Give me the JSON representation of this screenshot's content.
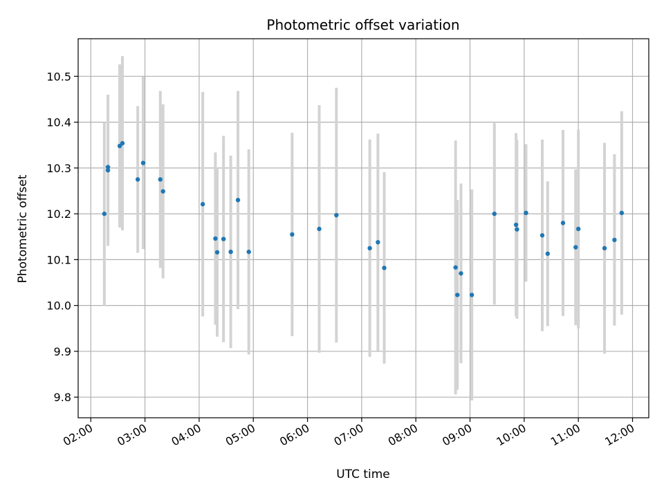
{
  "chart_data": {
    "type": "scatter",
    "title": "Photometric offset variation",
    "xlabel": "UTC time",
    "ylabel": "Photometric offset",
    "x_tick_labels": [
      "02:00",
      "03:00",
      "04:00",
      "05:00",
      "06:00",
      "07:00",
      "08:00",
      "09:00",
      "10:00",
      "11:00",
      "12:00"
    ],
    "y_tick_labels": [
      "9.8",
      "9.9",
      "10.0",
      "10.1",
      "10.2",
      "10.3",
      "10.4",
      "10.5"
    ],
    "xlim": [
      "01:46",
      "12:18"
    ],
    "ylim": [
      9.755,
      10.582
    ],
    "grid": true,
    "colors": {
      "point": "#1f77b4",
      "error_bar": "#d3d3d3",
      "grid": "#b0b0b0"
    },
    "points": [
      {
        "x": "02:15",
        "y": 10.2,
        "yerr": 0.2
      },
      {
        "x": "02:19",
        "y": 10.302,
        "yerr": 0.1
      },
      {
        "x": "02:19",
        "y": 10.295,
        "yerr": 0.165
      },
      {
        "x": "02:32",
        "y": 10.348,
        "yerr": 0.178
      },
      {
        "x": "02:35",
        "y": 10.354,
        "yerr": 0.19
      },
      {
        "x": "02:52",
        "y": 10.275,
        "yerr": 0.16
      },
      {
        "x": "02:58",
        "y": 10.311,
        "yerr": 0.188
      },
      {
        "x": "03:17",
        "y": 10.275,
        "yerr": 0.193
      },
      {
        "x": "03:20",
        "y": 10.249,
        "yerr": 0.19
      },
      {
        "x": "04:04",
        "y": 10.221,
        "yerr": 0.245
      },
      {
        "x": "04:18",
        "y": 10.146,
        "yerr": 0.188
      },
      {
        "x": "04:20",
        "y": 10.116,
        "yerr": 0.184
      },
      {
        "x": "04:27",
        "y": 10.145,
        "yerr": 0.225
      },
      {
        "x": "04:35",
        "y": 10.117,
        "yerr": 0.21
      },
      {
        "x": "04:43",
        "y": 10.23,
        "yerr": 0.238
      },
      {
        "x": "04:55",
        "y": 10.117,
        "yerr": 0.224
      },
      {
        "x": "05:43",
        "y": 10.155,
        "yerr": 0.222
      },
      {
        "x": "06:13",
        "y": 10.167,
        "yerr": 0.27
      },
      {
        "x": "06:32",
        "y": 10.197,
        "yerr": 0.278
      },
      {
        "x": "07:09",
        "y": 10.125,
        "yerr": 0.237
      },
      {
        "x": "07:18",
        "y": 10.138,
        "yerr": 0.237
      },
      {
        "x": "07:25",
        "y": 10.082,
        "yerr": 0.209
      },
      {
        "x": "08:44",
        "y": 10.083,
        "yerr": 0.277
      },
      {
        "x": "08:46",
        "y": 10.023,
        "yerr": 0.207
      },
      {
        "x": "08:50",
        "y": 10.07,
        "yerr": 0.196
      },
      {
        "x": "09:02",
        "y": 10.023,
        "yerr": 0.23
      },
      {
        "x": "09:27",
        "y": 10.2,
        "yerr": 0.198
      },
      {
        "x": "09:51",
        "y": 10.176,
        "yerr": 0.2
      },
      {
        "x": "09:52",
        "y": 10.166,
        "yerr": 0.195
      },
      {
        "x": "10:02",
        "y": 10.202,
        "yerr": 0.15
      },
      {
        "x": "10:20",
        "y": 10.153,
        "yerr": 0.209
      },
      {
        "x": "10:26",
        "y": 10.113,
        "yerr": 0.158
      },
      {
        "x": "10:43",
        "y": 10.18,
        "yerr": 0.203
      },
      {
        "x": "10:57",
        "y": 10.127,
        "yerr": 0.17
      },
      {
        "x": "11:00",
        "y": 10.167,
        "yerr": 0.217
      },
      {
        "x": "11:29",
        "y": 10.125,
        "yerr": 0.23
      },
      {
        "x": "11:40",
        "y": 10.143,
        "yerr": 0.187
      },
      {
        "x": "11:48",
        "y": 10.202,
        "yerr": 0.222
      }
    ]
  }
}
